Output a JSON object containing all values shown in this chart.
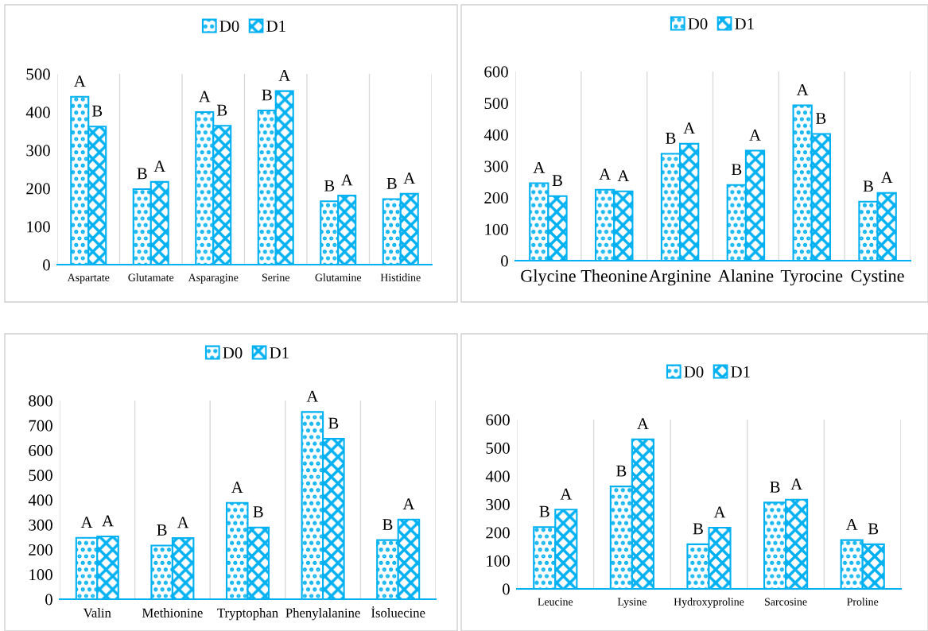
{
  "chart_data": [
    {
      "type": "bar",
      "categories": [
        "Aspartate",
        "Glutamate",
        "Asparagine",
        "Serine",
        "Glutamine",
        "Histidine"
      ],
      "ylim": [
        0,
        500
      ],
      "yticks": [
        0,
        100,
        200,
        300,
        400,
        500
      ],
      "grid": "x",
      "legend": "top",
      "series": [
        {
          "name": "D0",
          "color": "#00b0f0",
          "values": [
            440,
            198,
            400,
            404,
            166,
            172
          ],
          "value_labels": [
            "A",
            "B",
            "A",
            "B",
            "B",
            "B"
          ]
        },
        {
          "name": "D1",
          "color": "#00b0f0",
          "values": [
            362,
            217,
            364,
            455,
            181,
            186
          ],
          "value_labels": [
            "B",
            "A",
            "B",
            "A",
            "A",
            "A"
          ]
        }
      ]
    },
    {
      "type": "bar",
      "categories": [
        "Glycine",
        "Theonine",
        "Arginine",
        "Alanine",
        "Tyrocine",
        "Cystine"
      ],
      "ylim": [
        0,
        600
      ],
      "yticks": [
        0,
        100,
        200,
        300,
        400,
        500,
        600
      ],
      "grid": "x",
      "legend": "top",
      "series": [
        {
          "name": "D0",
          "color": "#00b0f0",
          "values": [
            246,
            225,
            339,
            240,
            493,
            187
          ],
          "value_labels": [
            "A",
            "A",
            "B",
            "B",
            "A",
            "B"
          ]
        },
        {
          "name": "D1",
          "color": "#00b0f0",
          "values": [
            205,
            220,
            371,
            349,
            402,
            215
          ],
          "value_labels": [
            "B",
            "A",
            "A",
            "A",
            "B",
            "A"
          ]
        }
      ]
    },
    {
      "type": "bar",
      "categories": [
        "Valin",
        "Methionine",
        "Tryptophan",
        "Phenylalanine",
        "İsoluecine"
      ],
      "ylim": [
        0,
        800
      ],
      "yticks": [
        0,
        100,
        200,
        300,
        400,
        500,
        600,
        700,
        800
      ],
      "grid": "x",
      "legend": "top",
      "series": [
        {
          "name": "D0",
          "color": "#00b0f0",
          "values": [
            247,
            216,
            388,
            754,
            238
          ],
          "value_labels": [
            "A",
            "B",
            "A",
            "A",
            "B"
          ]
        },
        {
          "name": "D1",
          "color": "#00b0f0",
          "values": [
            253,
            246,
            289,
            646,
            321
          ],
          "value_labels": [
            "A",
            "A",
            "B",
            "B",
            "A"
          ]
        }
      ]
    },
    {
      "type": "bar",
      "categories": [
        "Leucine",
        "Lysine",
        "Hydroxyproline",
        "Sarcosine",
        "Proline"
      ],
      "ylim": [
        0,
        600
      ],
      "yticks": [
        0,
        100,
        200,
        300,
        400,
        500,
        600
      ],
      "grid": "x",
      "legend": "top",
      "series": [
        {
          "name": "D0",
          "color": "#00b0f0",
          "values": [
            219,
            363,
            158,
            306,
            173
          ],
          "value_labels": [
            "B",
            "B",
            "B",
            "B",
            "A"
          ]
        },
        {
          "name": "D1",
          "color": "#00b0f0",
          "values": [
            281,
            530,
            217,
            316,
            158
          ],
          "value_labels": [
            "A",
            "A",
            "A",
            "A",
            "B"
          ]
        }
      ]
    }
  ]
}
